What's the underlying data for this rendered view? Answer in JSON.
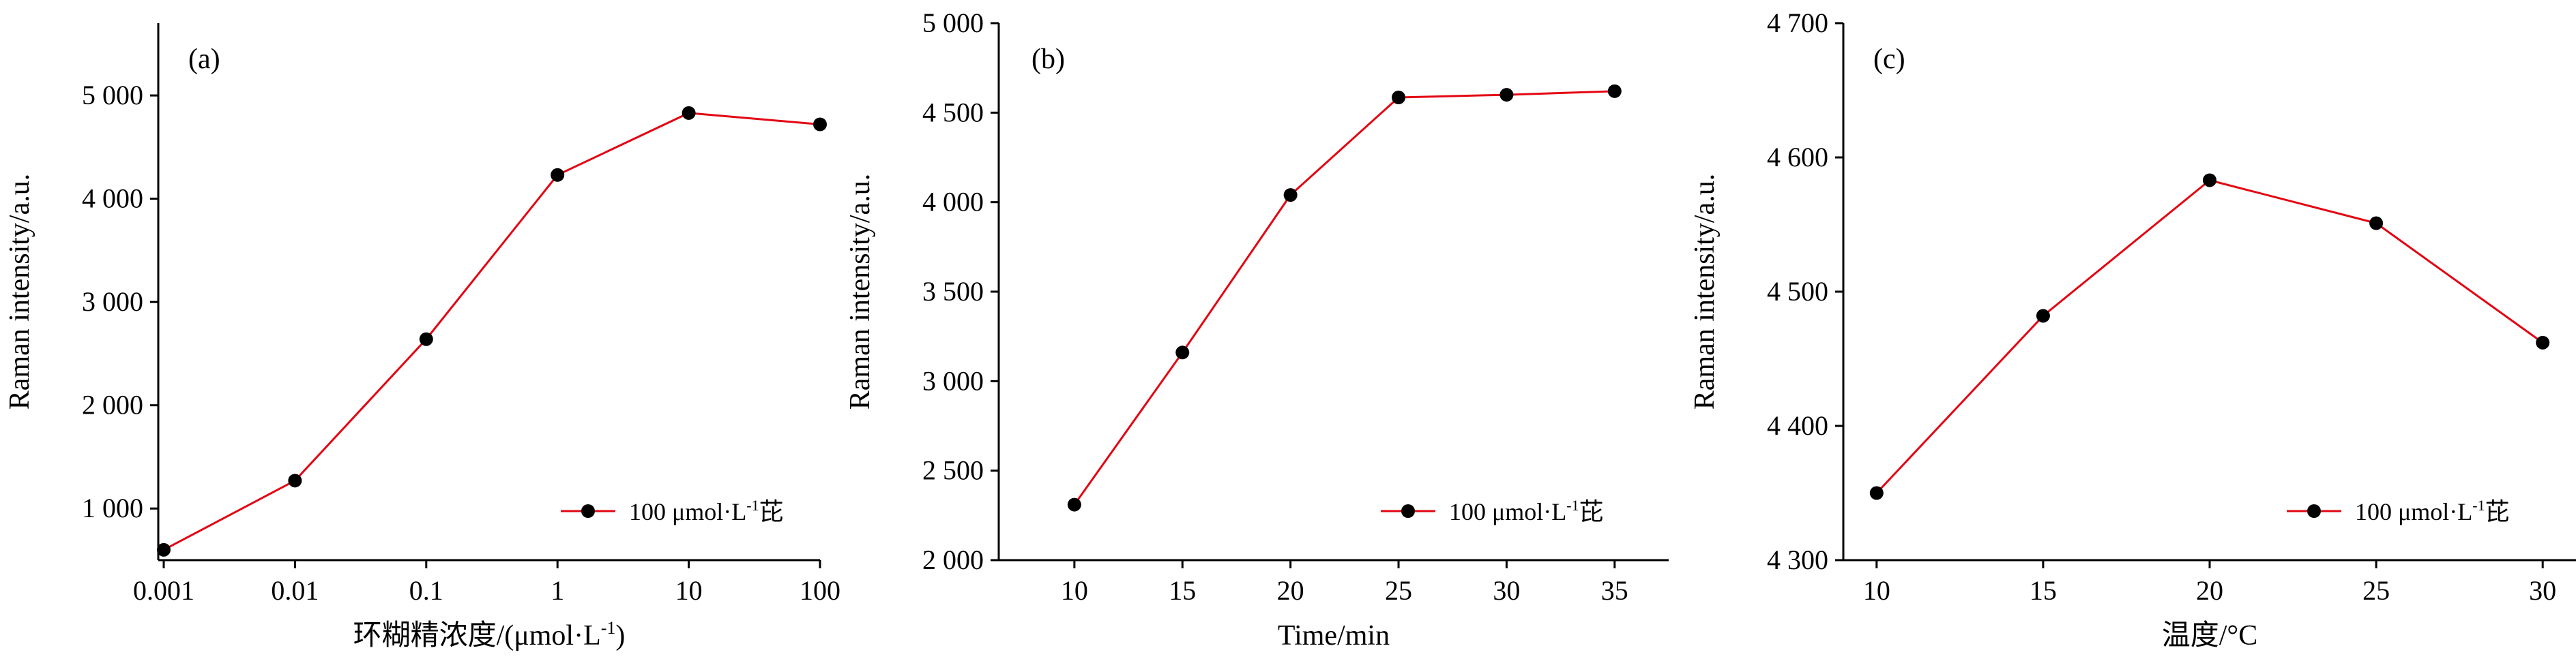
{
  "figure": {
    "series_color": "#e30613",
    "marker_color": "#000000",
    "axis_color": "#000000",
    "legend_position": "bottom-right"
  },
  "chart_data": [
    {
      "type": "line",
      "panel_label": "(a)",
      "xlabel": "环糊精浓度/(μmol·L",
      "xlabel_sup": "-1",
      "xlabel_tail": ")",
      "ylabel": "Raman intensity/a.u.",
      "x_scale": "log",
      "x": [
        0.001,
        0.01,
        0.1,
        1,
        10,
        100
      ],
      "x_tick_labels": [
        "0.001",
        "0.01",
        "0.1",
        "1",
        "10",
        "100"
      ],
      "ylim": [
        500,
        5700
      ],
      "y_ticks": [
        1000,
        2000,
        3000,
        4000,
        5000
      ],
      "y_tick_labels": [
        "1 000",
        "2 000",
        "3 000",
        "4 000",
        "5 000"
      ],
      "series": [
        {
          "name": "100 μmol·L",
          "name_sup": "-1",
          "name_tail": "芘",
          "values": [
            600,
            1270,
            2640,
            4230,
            4830,
            4720
          ]
        }
      ]
    },
    {
      "type": "line",
      "panel_label": "(b)",
      "xlabel": "Time/min",
      "xlabel_sup": "",
      "xlabel_tail": "",
      "ylabel": "Raman intensity/a.u.",
      "x_scale": "linear",
      "x": [
        10,
        15,
        20,
        25,
        30,
        35
      ],
      "x_tick_labels": [
        "10",
        "15",
        "20",
        "25",
        "30",
        "35"
      ],
      "xlim": [
        6.5,
        37.5
      ],
      "ylim": [
        2000,
        5000
      ],
      "y_ticks": [
        2000,
        2500,
        3000,
        3500,
        4000,
        4500,
        5000
      ],
      "y_tick_labels": [
        "2 000",
        "2 500",
        "3 000",
        "3 500",
        "4 000",
        "4 500",
        "5 000"
      ],
      "series": [
        {
          "name": "100 μmol·L",
          "name_sup": "-1",
          "name_tail": "芘",
          "values": [
            2310,
            3160,
            4040,
            4585,
            4600,
            4620
          ]
        }
      ]
    },
    {
      "type": "line",
      "panel_label": "(c)",
      "xlabel": "温度/°C",
      "xlabel_sup": "",
      "xlabel_tail": "",
      "ylabel": "Raman intensity/a.u.",
      "x_scale": "linear",
      "x": [
        10,
        15,
        20,
        25,
        30
      ],
      "x_tick_labels": [
        "10",
        "15",
        "20",
        "25",
        "30"
      ],
      "xlim": [
        9,
        31
      ],
      "ylim": [
        4300,
        4700
      ],
      "y_ticks": [
        4300,
        4400,
        4500,
        4600,
        4700
      ],
      "y_tick_labels": [
        "4 300",
        "4 400",
        "4 500",
        "4 600",
        "4 700"
      ],
      "series": [
        {
          "name": "100 μmol·L",
          "name_sup": "-1",
          "name_tail": "芘",
          "values": [
            4350,
            4482,
            4583,
            4551,
            4462
          ]
        }
      ]
    }
  ]
}
